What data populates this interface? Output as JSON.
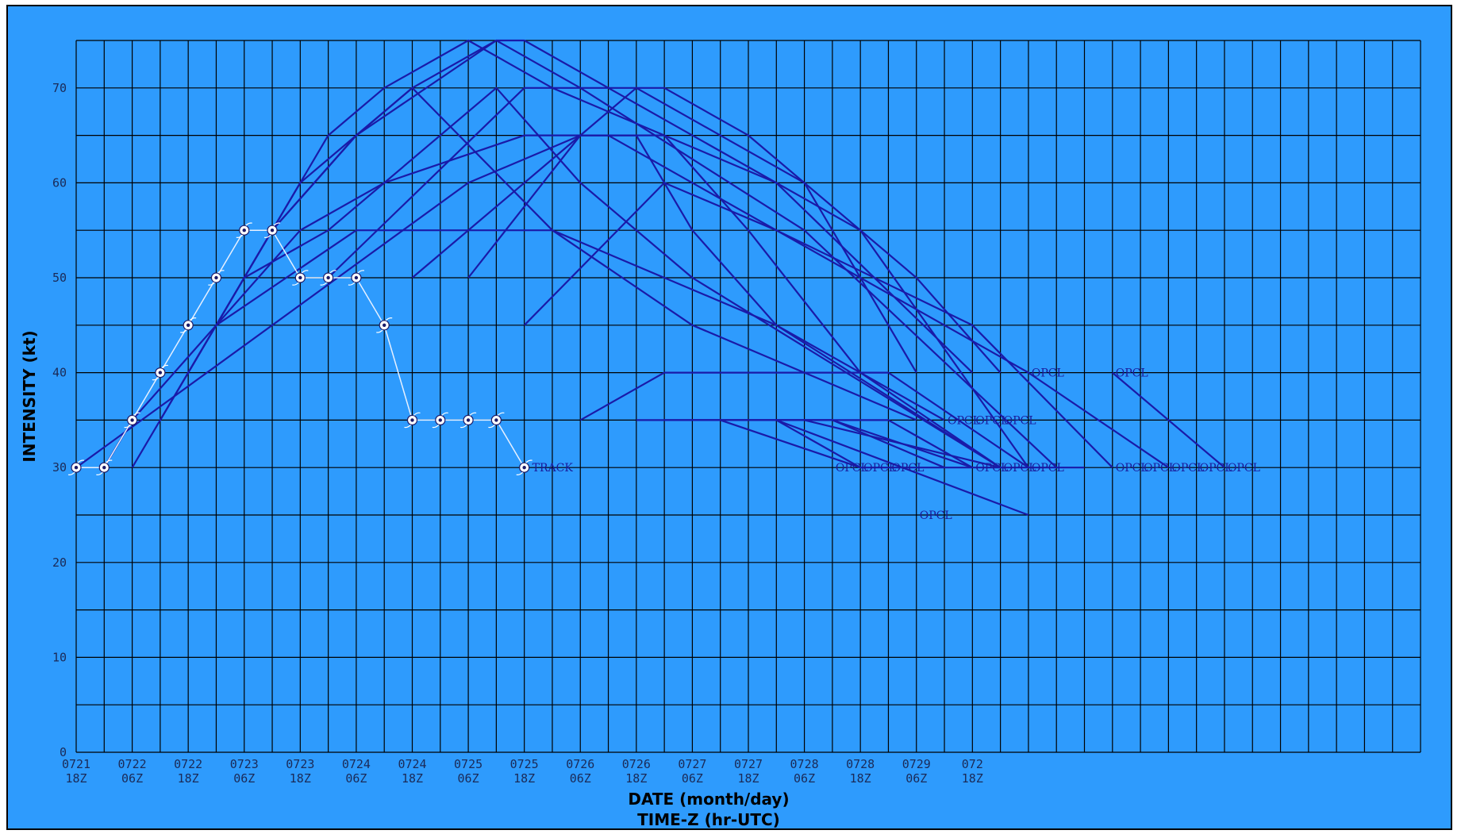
{
  "chart_data": {
    "type": "line",
    "ylabel": "INTENSITY  (kt)",
    "xlabel_line1": "DATE  (month/day)",
    "xlabel_line2": "TIME-Z  (hr-UTC)",
    "ylim": [
      0,
      75
    ],
    "yticks": [
      0,
      10,
      20,
      30,
      40,
      50,
      60,
      70
    ],
    "ygrid_step": 5,
    "x_unit": "hours since first tick",
    "x_tick_labels": [
      [
        "0721",
        "18Z"
      ],
      [
        "0722",
        "06Z"
      ],
      [
        "0722",
        "18Z"
      ],
      [
        "0723",
        "06Z"
      ],
      [
        "0723",
        "18Z"
      ],
      [
        "0724",
        "06Z"
      ],
      [
        "0724",
        "18Z"
      ],
      [
        "0725",
        "06Z"
      ],
      [
        "0725",
        "18Z"
      ],
      [
        "0726",
        "06Z"
      ],
      [
        "0726",
        "18Z"
      ],
      [
        "0727",
        "06Z"
      ],
      [
        "0727",
        "18Z"
      ],
      [
        "0728",
        "06Z"
      ],
      [
        "0728",
        "18Z"
      ],
      [
        "0729",
        "06Z"
      ],
      [
        "072",
        "18Z"
      ]
    ],
    "grid": true,
    "colors": {
      "background": "#2e9bfd",
      "grid": "#000000",
      "forecast": "#1a1aa8",
      "track": "#e6f0ff"
    },
    "track": {
      "name": "TRACK",
      "points": [
        [
          "0721 18Z",
          30
        ],
        [
          "0722 00Z",
          30
        ],
        [
          "0722 06Z",
          35
        ],
        [
          "0722 12Z",
          40
        ],
        [
          "0722 18Z",
          45
        ],
        [
          "0723 00Z",
          50
        ],
        [
          "0723 06Z",
          55
        ],
        [
          "0723 12Z",
          55
        ],
        [
          "0723 18Z",
          50
        ],
        [
          "0724 00Z",
          50
        ],
        [
          "0724 06Z",
          50
        ],
        [
          "0724 12Z",
          45
        ],
        [
          "0724 18Z",
          35
        ],
        [
          "0725 00Z",
          35
        ],
        [
          "0725 06Z",
          35
        ],
        [
          "0725 12Z",
          35
        ],
        [
          "0725 18Z",
          30
        ]
      ]
    },
    "forecast_label": "OPCL",
    "forecasts": [
      [
        [
          0,
          30
        ],
        [
          84,
          60
        ],
        [
          108,
          65
        ],
        [
          120,
          70
        ],
        [
          156,
          60
        ],
        [
          180,
          40
        ]
      ],
      [
        [
          6,
          30
        ],
        [
          12,
          35
        ],
        [
          30,
          45
        ],
        [
          60,
          55
        ],
        [
          102,
          55
        ],
        [
          150,
          45
        ],
        [
          168,
          40
        ]
      ],
      [
        [
          12,
          30
        ],
        [
          30,
          45
        ],
        [
          48,
          55
        ],
        [
          66,
          60
        ],
        [
          96,
          65
        ],
        [
          120,
          65
        ],
        [
          132,
          55
        ],
        [
          150,
          45
        ],
        [
          198,
          30
        ]
      ],
      [
        [
          18,
          35
        ],
        [
          36,
          50
        ],
        [
          54,
          55
        ],
        [
          90,
          70
        ],
        [
          108,
          60
        ],
        [
          132,
          50
        ],
        [
          198,
          30
        ]
      ],
      [
        [
          24,
          40
        ],
        [
          42,
          55
        ],
        [
          60,
          65
        ],
        [
          72,
          70
        ],
        [
          102,
          55
        ],
        [
          132,
          45
        ],
        [
          180,
          35
        ]
      ],
      [
        [
          30,
          45
        ],
        [
          48,
          60
        ],
        [
          60,
          65
        ],
        [
          90,
          75
        ],
        [
          108,
          70
        ],
        [
          156,
          55
        ],
        [
          210,
          30
        ]
      ],
      [
        [
          36,
          50
        ],
        [
          54,
          65
        ],
        [
          66,
          70
        ],
        [
          84,
          75
        ],
        [
          102,
          70
        ],
        [
          150,
          60
        ],
        [
          192,
          40
        ]
      ],
      [
        [
          42,
          55
        ],
        [
          60,
          65
        ],
        [
          72,
          70
        ],
        [
          90,
          75
        ],
        [
          96,
          75
        ],
        [
          168,
          55
        ],
        [
          204,
          30
        ]
      ],
      [
        [
          54,
          50
        ],
        [
          96,
          70
        ],
        [
          126,
          70
        ],
        [
          144,
          65
        ],
        [
          180,
          50
        ],
        [
          198,
          40
        ]
      ],
      [
        [
          72,
          50
        ],
        [
          108,
          65
        ],
        [
          114,
          65
        ],
        [
          150,
          55
        ],
        [
          186,
          45
        ],
        [
          204,
          40
        ],
        [
          234,
          30
        ]
      ],
      [
        [
          84,
          50
        ],
        [
          108,
          65
        ],
        [
          126,
          65
        ],
        [
          144,
          55
        ],
        [
          168,
          40
        ],
        [
          198,
          30
        ]
      ],
      [
        [
          96,
          45
        ],
        [
          126,
          60
        ],
        [
          150,
          55
        ],
        [
          192,
          45
        ],
        [
          222,
          30
        ]
      ],
      [
        [
          108,
          35
        ],
        [
          126,
          40
        ],
        [
          174,
          40
        ],
        [
          204,
          30
        ]
      ],
      [
        [
          120,
          35
        ],
        [
          162,
          35
        ],
        [
          192,
          30
        ]
      ],
      [
        [
          126,
          35
        ],
        [
          138,
          35
        ],
        [
          168,
          30
        ]
      ],
      [
        [
          132,
          35
        ],
        [
          162,
          35
        ],
        [
          186,
          30
        ]
      ],
      [
        [
          138,
          35
        ],
        [
          174,
          35
        ],
        [
          192,
          30
        ]
      ],
      [
        [
          150,
          35
        ],
        [
          168,
          30
        ],
        [
          216,
          30
        ]
      ],
      [
        [
          156,
          35
        ],
        [
          198,
          30
        ]
      ],
      [
        [
          150,
          35
        ],
        [
          204,
          25
        ]
      ],
      [
        [
          222,
          40
        ],
        [
          246,
          30
        ]
      ],
      [
        [
          168,
          40
        ],
        [
          186,
          35
        ]
      ]
    ],
    "label_positions_hours": [
      [
        162,
        30
      ],
      [
        168,
        30
      ],
      [
        174,
        30
      ],
      [
        198,
        30
      ],
      [
        204,
        30
      ],
      [
        180,
        25
      ],
      [
        186,
        35
      ],
      [
        192,
        30
      ],
      [
        192,
        35
      ],
      [
        198,
        35
      ],
      [
        204,
        40
      ],
      [
        222,
        30
      ],
      [
        228,
        30
      ],
      [
        234,
        30
      ],
      [
        240,
        30
      ],
      [
        246,
        30
      ],
      [
        222,
        40
      ]
    ]
  }
}
